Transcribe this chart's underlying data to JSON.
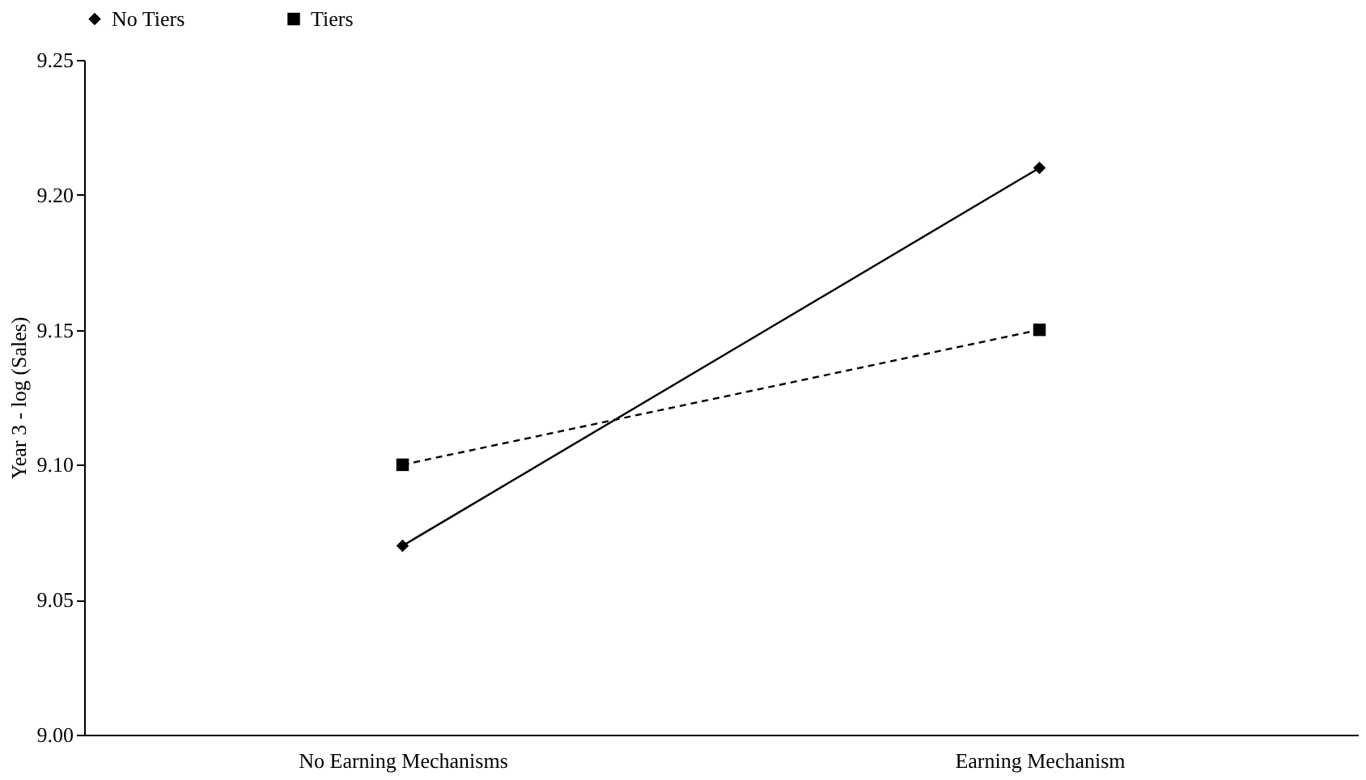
{
  "chart_data": {
    "type": "line",
    "ylabel": "Year 3 - log (Sales)",
    "categories": [
      "No Earning Mechanisms",
      "Earning Mechanism"
    ],
    "series": [
      {
        "name": "No Tiers",
        "color": "#000000",
        "values": [
          9.07,
          9.21
        ],
        "marker": "diamond",
        "line_style": "solid"
      },
      {
        "name": "Tiers",
        "color": "#000000",
        "values": [
          9.1,
          9.15
        ],
        "marker": "square",
        "line_style": "dashed"
      }
    ],
    "ylim": [
      9.0,
      9.25
    ],
    "yticks": [
      {
        "value": 9.0,
        "label": "9.00"
      },
      {
        "value": 9.05,
        "label": "9.05"
      },
      {
        "value": 9.1,
        "label": "9.10"
      },
      {
        "value": 9.15,
        "label": "9.15"
      },
      {
        "value": 9.2,
        "label": "9.20"
      },
      {
        "value": 9.25,
        "label": "9.25"
      }
    ],
    "grid": false,
    "legend": "top"
  }
}
